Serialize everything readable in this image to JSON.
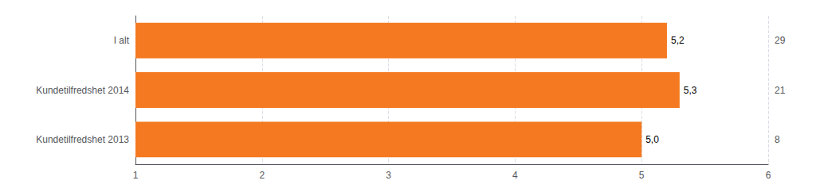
{
  "chart_data": {
    "type": "bar",
    "orientation": "horizontal",
    "categories": [
      "Kundetilfredshet 2013",
      "Kundetilfredshet 2014",
      "I alt"
    ],
    "values": [
      5.0,
      5.3,
      5.2
    ],
    "value_labels": [
      "5,0",
      "5,3",
      "5,2"
    ],
    "data_labels": true,
    "counts": [
      8,
      21,
      29
    ],
    "color": "#F47920",
    "xlim": [
      1,
      6
    ],
    "xticks": [
      1,
      2,
      3,
      4,
      5,
      6
    ],
    "grid": true
  }
}
